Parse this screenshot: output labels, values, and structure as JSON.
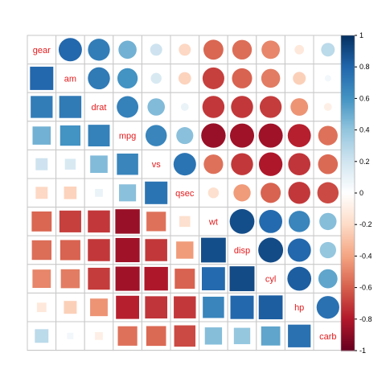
{
  "chart_data": {
    "type": "heatmap",
    "title": "",
    "variables": [
      "gear",
      "am",
      "drat",
      "mpg",
      "vs",
      "qsec",
      "wt",
      "disp",
      "cyl",
      "hp",
      "carb"
    ],
    "matrix": [
      [
        1.0,
        0.79,
        0.7,
        0.48,
        0.21,
        -0.21,
        -0.58,
        -0.56,
        -0.49,
        -0.13,
        0.27
      ],
      [
        0.79,
        1.0,
        0.71,
        0.6,
        0.17,
        -0.23,
        -0.69,
        -0.59,
        -0.52,
        -0.24,
        0.06
      ],
      [
        0.7,
        0.71,
        1.0,
        0.68,
        0.44,
        0.09,
        -0.71,
        -0.71,
        -0.7,
        -0.45,
        -0.09
      ],
      [
        0.48,
        0.6,
        0.68,
        1.0,
        0.66,
        0.42,
        -0.87,
        -0.85,
        -0.85,
        -0.78,
        -0.55
      ],
      [
        0.21,
        0.17,
        0.44,
        0.66,
        1.0,
        0.74,
        -0.55,
        -0.71,
        -0.81,
        -0.72,
        -0.57
      ],
      [
        -0.21,
        -0.23,
        0.09,
        0.42,
        0.74,
        1.0,
        -0.17,
        -0.43,
        -0.59,
        -0.71,
        -0.66
      ],
      [
        -0.58,
        -0.69,
        -0.71,
        -0.87,
        -0.55,
        -0.17,
        1.0,
        0.89,
        0.78,
        0.66,
        0.43
      ],
      [
        -0.56,
        -0.59,
        -0.71,
        -0.85,
        -0.71,
        -0.43,
        0.89,
        1.0,
        0.9,
        0.79,
        0.39
      ],
      [
        -0.49,
        -0.52,
        -0.7,
        -0.85,
        -0.81,
        -0.59,
        0.78,
        0.9,
        1.0,
        0.83,
        0.53
      ],
      [
        -0.13,
        -0.24,
        -0.45,
        -0.78,
        -0.72,
        -0.71,
        0.66,
        0.79,
        0.83,
        1.0,
        0.75
      ],
      [
        0.27,
        0.06,
        -0.09,
        -0.55,
        -0.57,
        -0.66,
        0.43,
        0.39,
        0.53,
        0.75,
        1.0
      ]
    ],
    "upper_glyph": "circle",
    "lower_glyph": "square",
    "diagonal": "variable-name",
    "color_range": [
      -1,
      1
    ],
    "colorbar_ticks": [
      "-1",
      "-0.8",
      "-0.6",
      "-0.4",
      "-0.2",
      "0",
      "0.2",
      "0.4",
      "0.6",
      "0.8",
      "1"
    ],
    "color_scale": [
      "#67001F",
      "#B2182B",
      "#D6604D",
      "#F4A582",
      "#FDDBC7",
      "#FFFFFF",
      "#D1E5F0",
      "#92C5DE",
      "#4393C3",
      "#2166AC",
      "#053061"
    ],
    "colors": {
      "label": "#E41A1C",
      "grid": "#C7C7C7"
    }
  }
}
